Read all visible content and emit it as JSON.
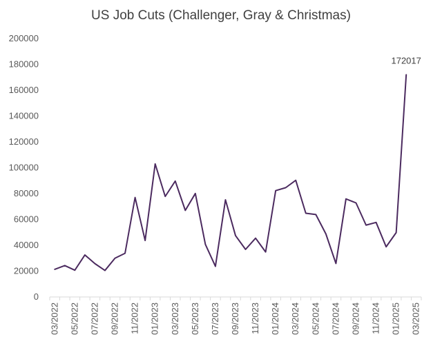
{
  "chart_data": {
    "type": "line",
    "title": "US Job Cuts (Challenger, Gray & Christmas)",
    "xlabel": "",
    "ylabel": "",
    "ylim": [
      0,
      200000
    ],
    "y_ticks": [
      0,
      20000,
      40000,
      60000,
      80000,
      100000,
      120000,
      140000,
      160000,
      180000,
      200000
    ],
    "x": [
      "03/2022",
      "04/2022",
      "05/2022",
      "06/2022",
      "07/2022",
      "08/2022",
      "09/2022",
      "10/2022",
      "11/2022",
      "12/2022",
      "01/2023",
      "02/2023",
      "03/2023",
      "04/2023",
      "05/2023",
      "06/2023",
      "07/2023",
      "08/2023",
      "09/2023",
      "10/2023",
      "11/2023",
      "12/2023",
      "01/2024",
      "02/2024",
      "03/2024",
      "04/2024",
      "05/2024",
      "06/2024",
      "07/2024",
      "08/2024",
      "09/2024",
      "10/2024",
      "11/2024",
      "12/2024",
      "01/2025",
      "02/2025",
      "03/2025"
    ],
    "x_tick_labels": [
      "03/2022",
      "05/2022",
      "07/2022",
      "09/2022",
      "11/2022",
      "01/2023",
      "03/2023",
      "05/2023",
      "07/2023",
      "09/2023",
      "11/2023",
      "01/2024",
      "03/2024",
      "05/2024",
      "07/2024",
      "09/2024",
      "11/2024",
      "01/2025",
      "03/2025"
    ],
    "series": [
      {
        "values": [
          21400,
          24300,
          20700,
          32500,
          25800,
          20500,
          30000,
          33800,
          77000,
          43700,
          103000,
          77800,
          89700,
          66995,
          80100,
          40700,
          23700,
          75200,
          47500,
          36800,
          45500,
          34800,
          82300,
          84600,
          90300,
          64800,
          63800,
          48800,
          25900,
          75900,
          72800,
          55600,
          57700,
          38800,
          49800,
          172017,
          null
        ]
      }
    ],
    "annotations": [
      {
        "x": "02/2025",
        "text": "172017"
      }
    ],
    "line_color": "#4b2a5f",
    "grid": false,
    "legend": "none"
  }
}
